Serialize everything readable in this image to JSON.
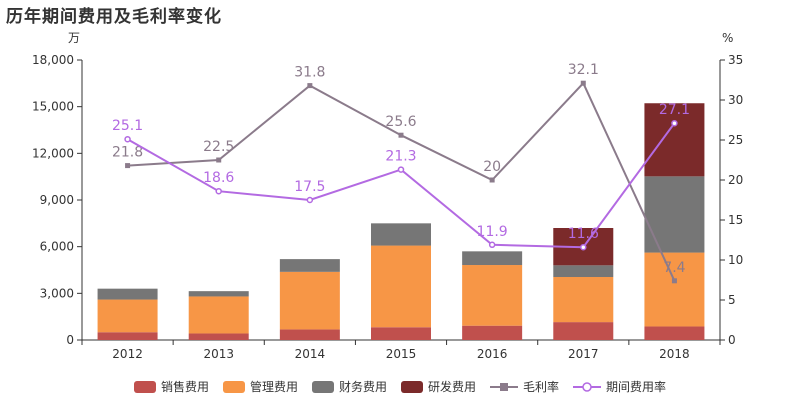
{
  "title": "历年期间费用及毛利率变化",
  "chart_data": {
    "type": "bar",
    "categories": [
      "2012",
      "2013",
      "2014",
      "2015",
      "2016",
      "2017",
      "2018"
    ],
    "left_axis": {
      "unit": "万",
      "min": 0,
      "max": 18000,
      "ticks": [
        "0",
        "3,000",
        "6,000",
        "9,000",
        "12,000",
        "15,000",
        "18,000"
      ]
    },
    "right_axis": {
      "unit": "%",
      "min": 0,
      "max": 35,
      "ticks": [
        "0",
        "5",
        "10",
        "15",
        "20",
        "25",
        "30",
        "35"
      ]
    },
    "series": [
      {
        "name": "销售费用",
        "kind": "bar",
        "color": "#c0504d",
        "values": [
          500,
          420,
          680,
          820,
          920,
          1150,
          870
        ]
      },
      {
        "name": "管理费用",
        "kind": "bar",
        "color": "#f79646",
        "values": [
          2100,
          2380,
          3700,
          5250,
          3900,
          2900,
          4750
        ]
      },
      {
        "name": "财务费用",
        "kind": "bar",
        "color": "#767676",
        "values": [
          700,
          340,
          820,
          1430,
          880,
          750,
          4900
        ]
      },
      {
        "name": "研发费用",
        "kind": "bar",
        "color": "#7b2a2a",
        "values": [
          0,
          0,
          0,
          0,
          0,
          2400,
          4700
        ]
      },
      {
        "name": "毛利率",
        "kind": "line",
        "color": "#8b7b8b",
        "values": [
          21.8,
          22.5,
          31.8,
          25.6,
          20,
          32.1,
          7.4
        ],
        "labels": [
          "21.8",
          "22.5",
          "31.8",
          "25.6",
          "20",
          "32.1",
          "7.4"
        ]
      },
      {
        "name": "期间费用率",
        "kind": "line",
        "color": "#b36ae2",
        "values": [
          25.1,
          18.6,
          17.5,
          21.3,
          11.9,
          11.6,
          27.1
        ],
        "labels": [
          "25.1",
          "18.6",
          "17.5",
          "21.3",
          "11.9",
          "11.6",
          "27.1"
        ]
      }
    ],
    "grid": false,
    "legend_position": "bottom"
  }
}
